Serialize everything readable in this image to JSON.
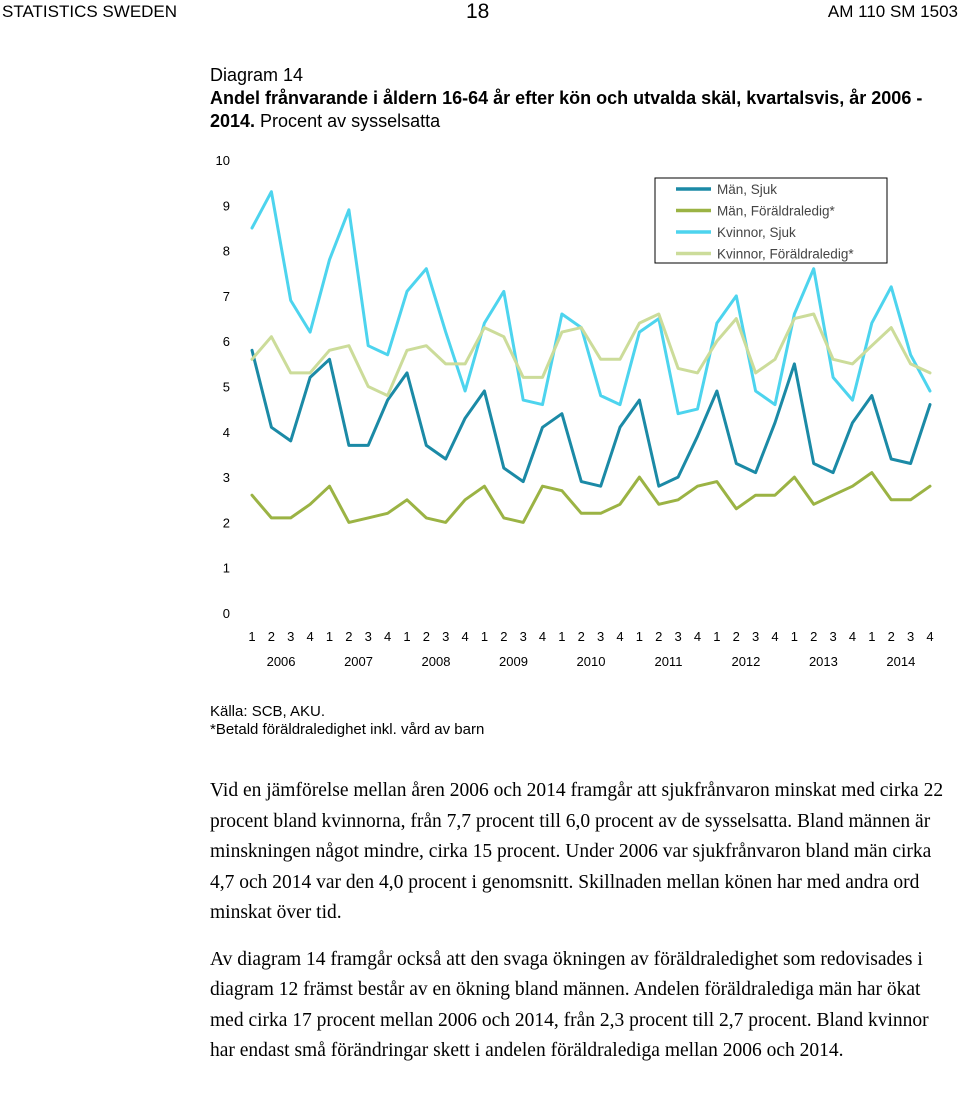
{
  "header": {
    "left": "STATISTICS SWEDEN",
    "page_number": "18",
    "right": "AM 110 SM 1503"
  },
  "caption": {
    "line1": "Diagram 14",
    "bold": "Andel frånvarande i åldern 16-64 år efter kön och utvalda skäl, kvartalsvis, år 2006 - 2014.",
    "normal": " Procent av sysselsatta"
  },
  "notes": {
    "source": "Källa: SCB, AKU.",
    "footnote": "*Betald föräldraledighet inkl. vård av barn"
  },
  "paragraphs": [
    "Vid en jämförelse mellan åren 2006 och 2014 framgår att sjukfrånvaron minskat med cirka 22 procent bland kvinnorna, från 7,7 procent till 6,0 procent av de sysselsatta. Bland männen är minskningen något mindre, cirka 15 procent. Under 2006 var sjukfrånvaron bland män cirka 4,7 och 2014 var den 4,0 procent i genomsnitt. Skillnaden mellan könen har med andra ord minskat över tid.",
    "Av diagram 14 framgår också att den svaga ökningen av föräldraledighet som redovisades i diagram 12 främst består av en ökning bland männen. Andelen föräldralediga män har ökat med cirka 17 procent mellan 2006 och 2014, från 2,3 procent till 2,7 procent. Bland kvinnor har endast små förändringar skett i andelen föräldralediga mellan 2006 och 2014."
  ],
  "chart_data": {
    "type": "line",
    "ylim": [
      0,
      10
    ],
    "yticks": [
      "0",
      "1",
      "2",
      "3",
      "4",
      "5",
      "6",
      "7",
      "8",
      "9",
      "10"
    ],
    "quarters": [
      "1",
      "2",
      "3",
      "4",
      "1",
      "2",
      "3",
      "4",
      "1",
      "2",
      "3",
      "4",
      "1",
      "2",
      "3",
      "4",
      "1",
      "2",
      "3",
      "4",
      "1",
      "2",
      "3",
      "4",
      "1",
      "2",
      "3",
      "4",
      "1",
      "2",
      "3",
      "4",
      "1",
      "2",
      "3",
      "4"
    ],
    "years": [
      "2006",
      "2007",
      "2008",
      "2009",
      "2010",
      "2011",
      "2012",
      "2013",
      "2014"
    ],
    "legend_position": "top-right",
    "series": [
      {
        "name": "Män, Sjuk",
        "color": "#1b8aa6",
        "values": [
          5.8,
          4.1,
          3.8,
          5.2,
          5.6,
          3.7,
          3.7,
          4.7,
          5.3,
          3.7,
          3.4,
          4.3,
          4.9,
          3.2,
          2.9,
          4.1,
          4.4,
          2.9,
          2.8,
          4.1,
          4.7,
          2.8,
          3.0,
          3.9,
          4.9,
          3.3,
          3.1,
          4.2,
          5.5,
          3.3,
          3.1,
          4.2,
          4.8,
          3.4,
          3.3,
          4.6
        ]
      },
      {
        "name": "Män, Föräldraledig*",
        "color": "#9bb344",
        "values": [
          2.6,
          2.1,
          2.1,
          2.4,
          2.8,
          2.0,
          2.1,
          2.2,
          2.5,
          2.1,
          2.0,
          2.5,
          2.8,
          2.1,
          2.0,
          2.8,
          2.7,
          2.2,
          2.2,
          2.4,
          3.0,
          2.4,
          2.5,
          2.8,
          2.9,
          2.3,
          2.6,
          2.6,
          3.0,
          2.4,
          2.6,
          2.8,
          3.1,
          2.5,
          2.5,
          2.8
        ]
      },
      {
        "name": "Kvinnor, Sjuk",
        "color": "#4dd4ee",
        "values": [
          8.5,
          9.3,
          6.9,
          6.2,
          7.8,
          8.9,
          5.9,
          5.7,
          7.1,
          7.6,
          6.2,
          4.9,
          6.4,
          7.1,
          4.7,
          4.6,
          6.6,
          6.3,
          4.8,
          4.6,
          6.2,
          6.5,
          4.4,
          4.5,
          6.4,
          7.0,
          4.9,
          4.6,
          6.6,
          7.6,
          5.2,
          4.7,
          6.4,
          7.2,
          5.7,
          4.9
        ]
      },
      {
        "name": "Kvinnor, Föräldraledig*",
        "color": "#ccdc9a",
        "values": [
          5.6,
          6.1,
          5.3,
          5.3,
          5.8,
          5.9,
          5.0,
          4.8,
          5.8,
          5.9,
          5.5,
          5.5,
          6.3,
          6.1,
          5.2,
          5.2,
          6.2,
          6.3,
          5.6,
          5.6,
          6.4,
          6.6,
          5.4,
          5.3,
          6.0,
          6.5,
          5.3,
          5.6,
          6.5,
          6.6,
          5.6,
          5.5,
          5.9,
          6.3,
          5.5,
          5.3
        ]
      }
    ]
  }
}
